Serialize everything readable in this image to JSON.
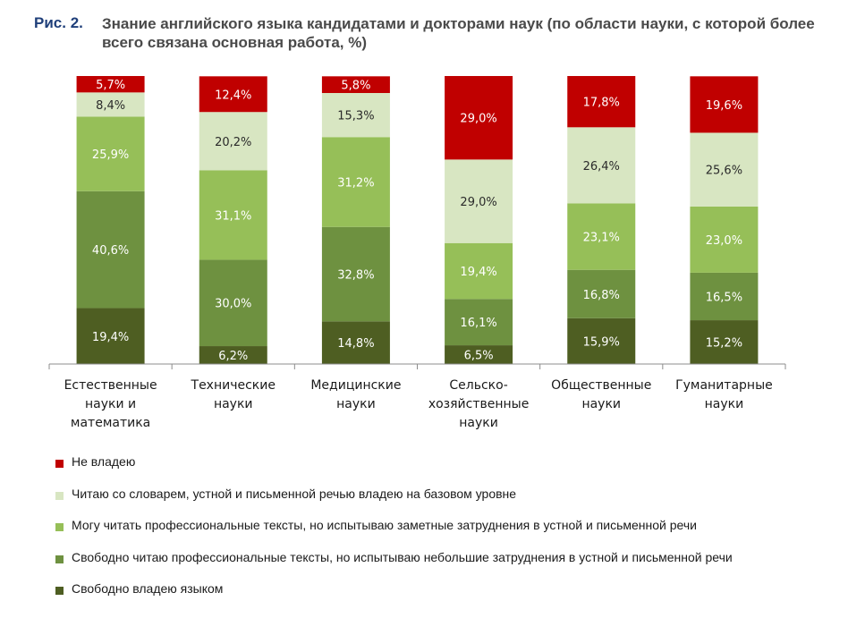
{
  "figure": {
    "label": "Рис. 2.",
    "title": "Знание английского языка кандидатами и докторами наук (по области науки, с которой более всего связана основная работа, %)"
  },
  "chart_data": {
    "type": "bar",
    "stacked": true,
    "categories": [
      [
        "Естественные",
        "науки и",
        "математика"
      ],
      [
        "Технические",
        "науки"
      ],
      [
        "Медицинские",
        "науки"
      ],
      [
        "Сельско-",
        "хозяйственные",
        "науки"
      ],
      [
        "Общественные",
        "науки"
      ],
      [
        "Гуманитарные",
        "науки"
      ]
    ],
    "ylim": [
      0,
      100
    ],
    "grid": false,
    "legend_position": "bottom",
    "series": [
      {
        "name": "Свободно владею языком",
        "color": "#4e5e22",
        "values": [
          19.4,
          6.2,
          14.8,
          6.5,
          15.9,
          15.2
        ],
        "labels": [
          "19,4%",
          "6,2%",
          "14,8%",
          "6,5%",
          "15,9%",
          "15,2%"
        ]
      },
      {
        "name": "Свободно читаю профессиональные тексты, но испытываю небольшие затруднения в устной и письменной речи",
        "color": "#6e9140",
        "values": [
          40.6,
          30.0,
          32.8,
          16.1,
          16.8,
          16.5
        ],
        "labels": [
          "40,6%",
          "30,0%",
          "32,8%",
          "16,1%",
          "16,8%",
          "16,5%"
        ]
      },
      {
        "name": "Могу читать профессиональные тексты, но испытываю заметные затруднения в устной и письменной речи",
        "color": "#96bf58",
        "values": [
          25.9,
          31.1,
          31.2,
          19.4,
          23.1,
          23.0
        ],
        "labels": [
          "25,9%",
          "31,1%",
          "31,2%",
          "19,4%",
          "23,1%",
          "23,0%"
        ]
      },
      {
        "name": "Читаю со словарем, устной и письменной речью владею на базовом уровне",
        "color": "#d8e6c2",
        "values": [
          8.4,
          20.2,
          15.3,
          29.0,
          26.4,
          25.6
        ],
        "labels": [
          "8,4%",
          "20,2%",
          "15,3%",
          "29,0%",
          "26,4%",
          "25,6%"
        ]
      },
      {
        "name": "Не владею",
        "color": "#c00000",
        "values": [
          5.7,
          12.4,
          5.8,
          29.0,
          17.8,
          19.6
        ],
        "labels": [
          "5,7%",
          "12,4%",
          "5,8%",
          "29,0%",
          "17,8%",
          "19,6%"
        ]
      }
    ],
    "legend_order": [
      4,
      3,
      2,
      1,
      0
    ]
  }
}
